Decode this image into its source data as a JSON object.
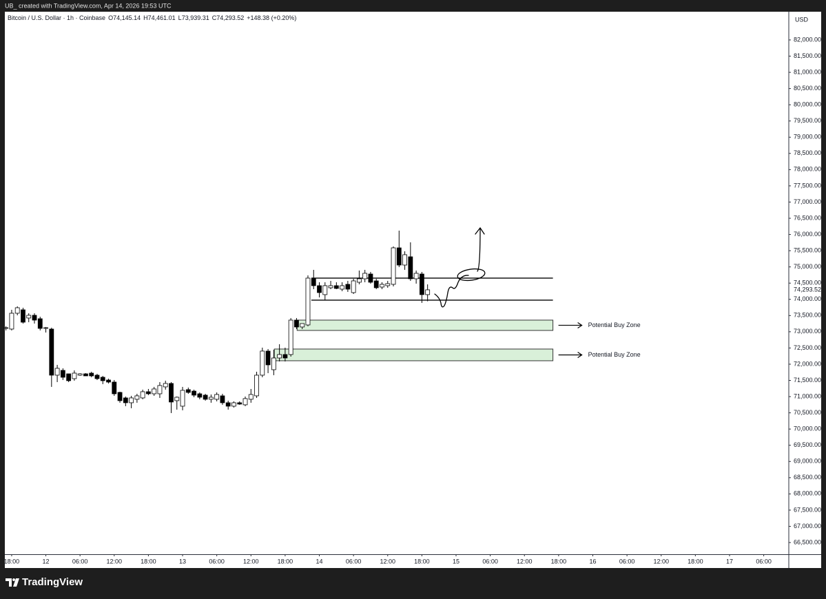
{
  "top_bar": {
    "text": "UB_ created with TradingView.com, Apr 14, 2026 19:53 UTC"
  },
  "footer": {
    "logo": "TradingView"
  },
  "chart_data": {
    "type": "candlestick",
    "header": {
      "symbol": "Bitcoin / U.S. Dollar · 1h · Coinbase",
      "ohlc": [
        {
          "key": "O",
          "value": "74,145.14"
        },
        {
          "key": "H",
          "value": "74,461.01"
        },
        {
          "key": "L",
          "value": "73,939.31"
        },
        {
          "key": "C",
          "value": "74,293.52"
        }
      ],
      "change": "+148.38 (+0.20%)"
    },
    "currency": "USD",
    "up_color": "#ffffff",
    "down_color": "#000000",
    "outline_color": "#000000",
    "x": [
      -1,
      0,
      1,
      2,
      3,
      4,
      5,
      6,
      7,
      8,
      9,
      10,
      11,
      12,
      13,
      14,
      15,
      16,
      17,
      18,
      19,
      20,
      21,
      22,
      23,
      24,
      25,
      26,
      27,
      28,
      29,
      30,
      31,
      32,
      33,
      34,
      35,
      36,
      37,
      38,
      39,
      40,
      41,
      42,
      43,
      44,
      45,
      46,
      47,
      48,
      49,
      50,
      51,
      52,
      53,
      54,
      55,
      56,
      57,
      58,
      59,
      60,
      61,
      62,
      63,
      64,
      65,
      66,
      67,
      68,
      69,
      70,
      71,
      72,
      73
    ],
    "open": [
      73104,
      73083,
      73571,
      73677,
      73423,
      73508,
      73402,
      73104,
      73083,
      71661,
      71809,
      71703,
      71554,
      71661,
      71703,
      71724,
      71661,
      71597,
      71512,
      71448,
      71130,
      70960,
      70811,
      70918,
      70960,
      71151,
      71087,
      71087,
      71300,
      71406,
      70875,
      70705,
      71215,
      71170,
      71087,
      71045,
      70918,
      70918,
      71024,
      70811,
      70705,
      70811,
      70748,
      70918,
      71024,
      71661,
      72404,
      71830,
      72191,
      72298,
      72298,
      73359,
      73147,
      73210,
      74633,
      74421,
      74145,
      74357,
      74421,
      74314,
      74463,
      74208,
      74527,
      74633,
      74781,
      74569,
      74378,
      74421,
      74463,
      75588,
      75057,
      75312,
      74633,
      74781,
      74145.14
    ],
    "high": [
      73168,
      73677,
      73784,
      73741,
      73571,
      73571,
      73465,
      73147,
      73126,
      71979,
      71873,
      71703,
      71809,
      71724,
      71724,
      71767,
      71703,
      71639,
      71554,
      71512,
      71151,
      71003,
      71024,
      71087,
      71215,
      71236,
      71300,
      71448,
      71491,
      71448,
      71003,
      71300,
      71279,
      71215,
      71130,
      71087,
      71066,
      71130,
      71087,
      70875,
      70854,
      70854,
      71003,
      71236,
      71767,
      72510,
      72467,
      72446,
      72616,
      72510,
      73423,
      73423,
      73253,
      74739,
      74909,
      74527,
      74527,
      74569,
      74527,
      74527,
      74569,
      74633,
      74888,
      74909,
      74845,
      74633,
      74527,
      74569,
      75631,
      76119,
      75482,
      75758,
      74888,
      74845,
      74461.01
    ],
    "low": [
      73041,
      73041,
      73508,
      73253,
      73295,
      73253,
      73041,
      72977,
      71300,
      71448,
      71512,
      71448,
      71491,
      71639,
      71639,
      71597,
      71512,
      71385,
      71406,
      71024,
      70811,
      70705,
      70642,
      70811,
      70918,
      71045,
      71024,
      70960,
      71215,
      70493,
      70599,
      70578,
      71087,
      70981,
      70918,
      70875,
      70811,
      70854,
      70748,
      70599,
      70663,
      70748,
      70705,
      70811,
      70960,
      71597,
      71724,
      71661,
      72085,
      72085,
      72234,
      73083,
      73083,
      73168,
      74314,
      74060,
      73975,
      74314,
      74314,
      74251,
      74229,
      74166,
      74463,
      74527,
      74484,
      74314,
      74314,
      74357,
      74399,
      74994,
      74909,
      74569,
      74484,
      73890,
      73939.31
    ],
    "close": [
      73126,
      73571,
      73741,
      73295,
      73508,
      73359,
      73104,
      73126,
      71661,
      71873,
      71597,
      71491,
      71724,
      71703,
      71639,
      71639,
      71554,
      71491,
      71448,
      71087,
      70875,
      70811,
      70960,
      71024,
      71151,
      71087,
      71236,
      71342,
      71406,
      70833,
      70981,
      71194,
      71130,
      71045,
      70981,
      70918,
      70981,
      71066,
      70811,
      70705,
      70811,
      70769,
      70939,
      71066,
      71661,
      72404,
      71979,
      72191,
      72298,
      72191,
      73359,
      73147,
      73253,
      74654,
      74421,
      74208,
      74421,
      74421,
      74336,
      74421,
      74314,
      74569,
      74633,
      74803,
      74527,
      74357,
      74463,
      74484,
      75588,
      75057,
      75376,
      74633,
      74803,
      74145,
      74293.52
    ],
    "last_price": {
      "value": 74293.52,
      "label": "74,293.52"
    },
    "xlim": [
      -1.2,
      136.4
    ],
    "ylim": [
      66139,
      82870
    ],
    "xticks": [
      {
        "value": 0,
        "label": "18:00"
      },
      {
        "value": 6,
        "label": "12"
      },
      {
        "value": 12,
        "label": "06:00"
      },
      {
        "value": 18,
        "label": "12:00"
      },
      {
        "value": 24,
        "label": "18:00"
      },
      {
        "value": 30,
        "label": "13"
      },
      {
        "value": 36,
        "label": "06:00"
      },
      {
        "value": 42,
        "label": "12:00"
      },
      {
        "value": 48,
        "label": "18:00"
      },
      {
        "value": 54,
        "label": "14"
      },
      {
        "value": 60,
        "label": "06:00"
      },
      {
        "value": 66,
        "label": "12:00"
      },
      {
        "value": 72,
        "label": "18:00"
      },
      {
        "value": 78,
        "label": "15"
      },
      {
        "value": 84,
        "label": "06:00"
      },
      {
        "value": 90,
        "label": "12:00"
      },
      {
        "value": 96,
        "label": "18:00"
      },
      {
        "value": 102,
        "label": "16"
      },
      {
        "value": 108,
        "label": "06:00"
      },
      {
        "value": 114,
        "label": "12:00"
      },
      {
        "value": 120,
        "label": "18:00"
      },
      {
        "value": 126,
        "label": "17"
      },
      {
        "value": 132,
        "label": "06:00"
      }
    ],
    "yticks": [
      {
        "value": 82000,
        "label": "82,000.00"
      },
      {
        "value": 81500,
        "label": "81,500.00"
      },
      {
        "value": 81000,
        "label": "81,000.00"
      },
      {
        "value": 80500,
        "label": "80,500.00"
      },
      {
        "value": 80000,
        "label": "80,000.00"
      },
      {
        "value": 79500,
        "label": "79,500.00"
      },
      {
        "value": 79000,
        "label": "79,000.00"
      },
      {
        "value": 78500,
        "label": "78,500.00"
      },
      {
        "value": 78000,
        "label": "78,000.00"
      },
      {
        "value": 77500,
        "label": "77,500.00"
      },
      {
        "value": 77000,
        "label": "77,000.00"
      },
      {
        "value": 76500,
        "label": "76,500.00"
      },
      {
        "value": 76000,
        "label": "76,000.00"
      },
      {
        "value": 75500,
        "label": "75,500.00"
      },
      {
        "value": 75000,
        "label": "75,000.00"
      },
      {
        "value": 74500,
        "label": "74,500.00"
      },
      {
        "value": 74000,
        "label": "74,000.00"
      },
      {
        "value": 73500,
        "label": "73,500.00"
      },
      {
        "value": 73000,
        "label": "73,000.00"
      },
      {
        "value": 72500,
        "label": "72,500.00"
      },
      {
        "value": 72000,
        "label": "72,000.00"
      },
      {
        "value": 71500,
        "label": "71,500.00"
      },
      {
        "value": 71000,
        "label": "71,000.00"
      },
      {
        "value": 70500,
        "label": "70,500.00"
      },
      {
        "value": 70000,
        "label": "70,000.00"
      },
      {
        "value": 69500,
        "label": "69,500.00"
      },
      {
        "value": 69000,
        "label": "69,000.00"
      },
      {
        "value": 68500,
        "label": "68,500.00"
      },
      {
        "value": 68000,
        "label": "68,000.00"
      },
      {
        "value": 67500,
        "label": "67,500.00"
      },
      {
        "value": 67000,
        "label": "67,000.00"
      },
      {
        "value": 66500,
        "label": "66,500.00"
      }
    ],
    "grid": false,
    "levels": [
      {
        "value": 74654,
        "start": 52.6,
        "end": 95
      },
      {
        "value": 73975,
        "start": 52.6,
        "end": 95
      }
    ],
    "zone_color": "#d9f0d9",
    "zones": [
      {
        "label": "Potential Buy Zone",
        "top": 73359,
        "bottom": 73041,
        "start": 50.1,
        "end": 95
      },
      {
        "label": "Potential Buy Zone",
        "top": 72467,
        "bottom": 72106,
        "start": 46.1,
        "end": 95
      }
    ]
  }
}
